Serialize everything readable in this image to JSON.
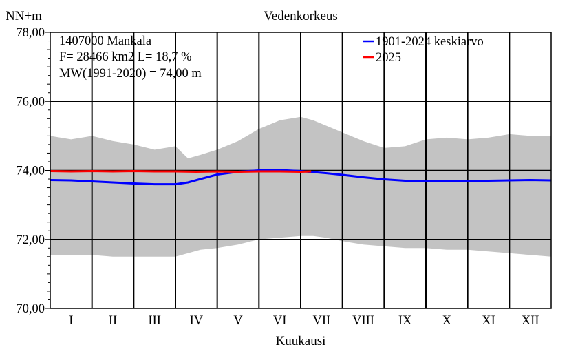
{
  "chart_data": {
    "type": "line",
    "title": "Vedenkorkeus",
    "xlabel": "Kuukausi",
    "ylabel": "NN+m",
    "ylim": [
      70,
      78
    ],
    "y_ticks": [
      "70,00",
      "72,00",
      "74,00",
      "76,00",
      "78,00"
    ],
    "y_tick_values": [
      70,
      72,
      74,
      76,
      78
    ],
    "categories": [
      "I",
      "II",
      "III",
      "IV",
      "V",
      "VI",
      "VII",
      "VIII",
      "IX",
      "X",
      "XI",
      "XII"
    ],
    "grid": true,
    "legend_position": "top-right",
    "info_lines": [
      "1407000 Mankala",
      "F=  28466 km2 L=  18,7 %",
      "MW(1991-2020) = 74,00 m"
    ],
    "band": {
      "color": "#c3c3c3",
      "x": [
        0.0,
        0.5,
        1.0,
        1.5,
        2.0,
        2.5,
        3.0,
        3.3,
        3.6,
        4.0,
        4.5,
        5.0,
        5.5,
        6.0,
        6.3,
        6.6,
        7.0,
        7.5,
        8.0,
        8.5,
        9.0,
        9.5,
        10.0,
        10.5,
        11.0,
        11.5,
        12.0
      ],
      "max": [
        75.0,
        74.9,
        75.0,
        74.85,
        74.75,
        74.6,
        74.7,
        74.35,
        74.45,
        74.6,
        74.85,
        75.2,
        75.45,
        75.55,
        75.45,
        75.3,
        75.1,
        74.85,
        74.65,
        74.7,
        74.9,
        74.95,
        74.9,
        74.95,
        75.05,
        75.0,
        75.0
      ],
      "min": [
        71.55,
        71.55,
        71.55,
        71.5,
        71.5,
        71.5,
        71.5,
        71.6,
        71.7,
        71.75,
        71.85,
        72.0,
        72.05,
        72.1,
        72.1,
        72.05,
        71.95,
        71.85,
        71.8,
        71.75,
        71.75,
        71.7,
        71.7,
        71.65,
        71.6,
        71.55,
        71.5
      ]
    },
    "series": [
      {
        "name": "1901-2024 keskiarvo",
        "color": "#0000ff",
        "x": [
          0.0,
          0.5,
          1.0,
          1.5,
          2.0,
          2.5,
          3.0,
          3.3,
          3.6,
          4.0,
          4.5,
          5.0,
          5.5,
          6.0,
          6.3,
          6.6,
          7.0,
          7.5,
          8.0,
          8.5,
          9.0,
          9.5,
          10.0,
          10.5,
          11.0,
          11.5,
          12.0
        ],
        "values": [
          73.72,
          73.71,
          73.68,
          73.65,
          73.62,
          73.6,
          73.6,
          73.65,
          73.75,
          73.88,
          73.96,
          74.0,
          74.01,
          73.98,
          73.95,
          73.92,
          73.87,
          73.8,
          73.74,
          73.7,
          73.68,
          73.68,
          73.69,
          73.7,
          73.71,
          73.72,
          73.71
        ]
      },
      {
        "name": "2025",
        "color": "#ff0000",
        "x": [
          0.0,
          0.5,
          1.0,
          1.5,
          2.0,
          2.5,
          3.0,
          3.5,
          4.0,
          4.5,
          5.0,
          5.5,
          6.0,
          6.25
        ],
        "values": [
          73.98,
          73.97,
          73.98,
          73.97,
          73.98,
          73.97,
          73.97,
          73.96,
          73.97,
          73.96,
          73.97,
          73.97,
          73.96,
          73.97
        ]
      }
    ]
  }
}
